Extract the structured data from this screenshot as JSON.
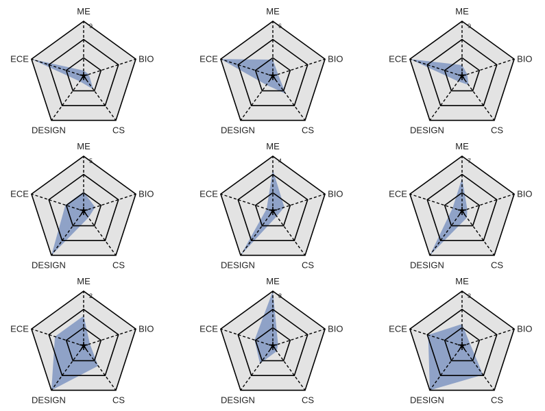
{
  "chart_data": {
    "type": "radar",
    "axes": [
      "ME",
      "BIO",
      "CS",
      "DESIGN",
      "ECE"
    ],
    "ring_levels": [
      0.333,
      0.667,
      1.0
    ],
    "grid": true,
    "colors": {
      "fill": "#6f89bd",
      "fill_opacity": 0.72,
      "ring_background": "#e3e3e3",
      "ring_stroke": "#000000"
    },
    "panels": [
      {
        "max_label": "9",
        "values": [
          0.1,
          0.1,
          0.3,
          0.12,
          1.0
        ]
      },
      {
        "max_label": "6",
        "values": [
          0.3,
          0.1,
          0.4,
          0.2,
          1.0
        ]
      },
      {
        "max_label": "9",
        "values": [
          0.2,
          0.1,
          0.2,
          0.12,
          1.0
        ]
      },
      {
        "max_label": "5",
        "values": [
          0.35,
          0.22,
          0.15,
          1.0,
          0.35
        ]
      },
      {
        "max_label": "4",
        "values": [
          0.75,
          0.22,
          0.12,
          1.0,
          0.12
        ]
      },
      {
        "max_label": "7",
        "values": [
          0.6,
          0.1,
          0.15,
          1.0,
          0.18
        ]
      },
      {
        "max_label": "2",
        "values": [
          0.55,
          0.12,
          0.45,
          1.0,
          0.55
        ]
      },
      {
        "max_label": "8",
        "values": [
          1.0,
          0.1,
          0.12,
          0.4,
          0.35
        ]
      },
      {
        "max_label": "3",
        "values": [
          0.4,
          0.15,
          0.65,
          1.0,
          0.65
        ]
      }
    ]
  }
}
